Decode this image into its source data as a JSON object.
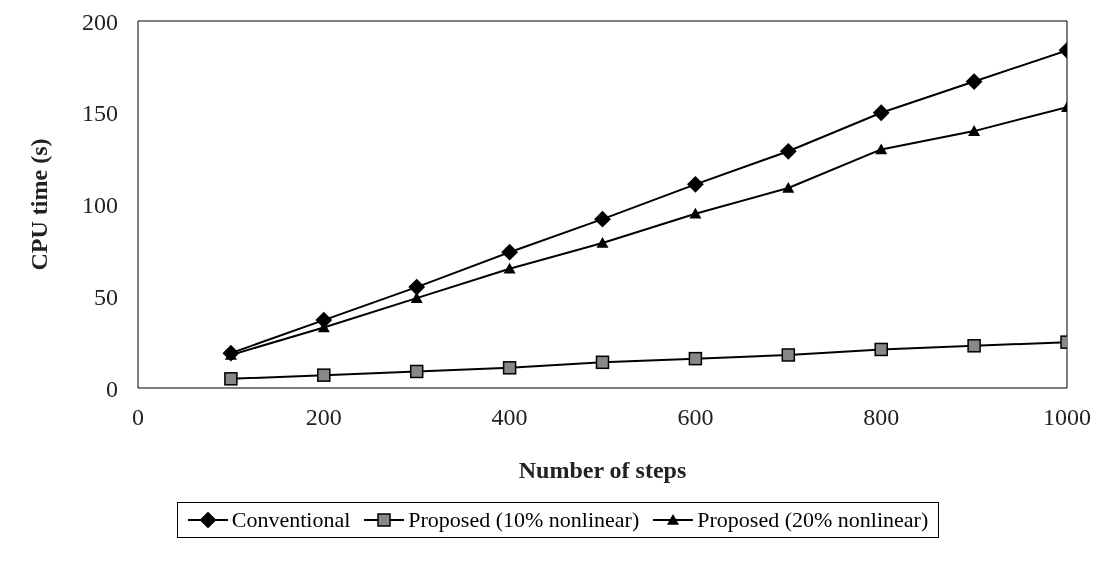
{
  "chart_data": {
    "type": "line",
    "xlabel": "Number of steps",
    "ylabel": "CPU time (s)",
    "x": [
      100,
      200,
      300,
      400,
      500,
      600,
      700,
      800,
      900,
      1000
    ],
    "series": [
      {
        "name": "Conventional",
        "color": "#000000",
        "marker": "diamond",
        "values": [
          19,
          37,
          55,
          74,
          92,
          111,
          129,
          150,
          167,
          184
        ]
      },
      {
        "name": "Proposed (10% nonlinear)",
        "color": "#000000",
        "marker": "square",
        "values": [
          5,
          7,
          9,
          11,
          14,
          16,
          18,
          21,
          23,
          25
        ]
      },
      {
        "name": "Proposed (20% nonlinear)",
        "color": "#000000",
        "marker": "triangle",
        "values": [
          18,
          33,
          49,
          65,
          79,
          95,
          109,
          130,
          140,
          153
        ]
      }
    ],
    "xlim": [
      0,
      1000
    ],
    "xticks": [
      0,
      200,
      400,
      600,
      800,
      1000
    ],
    "ylim": [
      0,
      200
    ],
    "yticks": [
      0,
      50,
      100,
      150,
      200
    ],
    "grid": false,
    "legend": "bottom"
  }
}
